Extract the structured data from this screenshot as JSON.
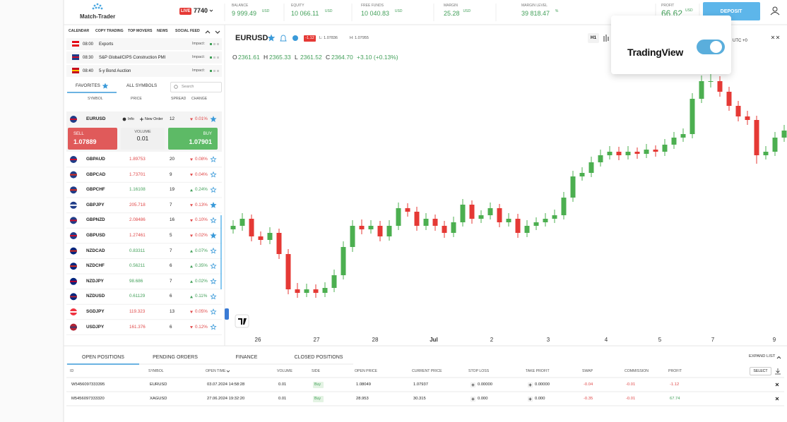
{
  "header": {
    "logo": "Match-Trader",
    "account_badge": "LIVE",
    "account": "7740",
    "stats": [
      {
        "label": "BALANCE",
        "value": "9 999.49",
        "unit": "USD"
      },
      {
        "label": "EQUITY",
        "value": "10 066.11",
        "unit": "USD"
      },
      {
        "label": "FREE FUNDS",
        "value": "10 040.83",
        "unit": "USD"
      },
      {
        "label": "MARGIN",
        "value": "25.28",
        "unit": "USD"
      },
      {
        "label": "MARGIN LEVEL",
        "value": "39 818.47",
        "unit": "%"
      },
      {
        "label": "PROFIT",
        "value": "66.62",
        "unit": "USD"
      }
    ],
    "deposit": "DEPOSIT"
  },
  "panel_tabs": [
    "CALENDAR",
    "COPY TRADING",
    "TOP MOVERS",
    "NEWS",
    "SOCIAL FEED"
  ],
  "calendar": [
    {
      "time": "08:00",
      "event": "Exports",
      "impact": "Impact:"
    },
    {
      "time": "08:30",
      "event": "S&P Global/CIPS Construction PMI",
      "impact": "Impact:"
    },
    {
      "time": "08:40",
      "event": "5-y Bond Auction",
      "impact": "Impact:"
    }
  ],
  "symbol_tabs": {
    "favorites": "FAVORITES",
    "all": "ALL SYMBOLS",
    "search": "Search"
  },
  "symbol_columns": [
    "SYMBOL",
    "PRICE",
    "SPREAD",
    "CHANGE"
  ],
  "selected": {
    "symbol": "EURUSD",
    "info": "Info",
    "new_order": "New Order",
    "spread": "12",
    "change": "0.01%",
    "direction": "down",
    "favorite": true,
    "sell_label": "SELL",
    "sell": "1.07889",
    "volume_label": "VOLUME",
    "volume": "0.01",
    "buy_label": "BUY",
    "buy": "1.07901"
  },
  "symbols": [
    {
      "symbol": "GBPAUD",
      "price": "1.89753",
      "spread": "20",
      "change": "0.08%",
      "direction": "down",
      "favorite": false
    },
    {
      "symbol": "GBPCAD",
      "price": "1.73701",
      "spread": "9",
      "change": "0.04%",
      "direction": "down",
      "favorite": false
    },
    {
      "symbol": "GBPCHF",
      "price": "1.16108",
      "spread": "19",
      "change": "0.24%",
      "direction": "up",
      "favorite": false
    },
    {
      "symbol": "GBPJPY",
      "price": "205.718",
      "spread": "7",
      "change": "0.13%",
      "direction": "down",
      "favorite": true
    },
    {
      "symbol": "GBPNZD",
      "price": "2.08486",
      "spread": "16",
      "change": "0.10%",
      "direction": "down",
      "favorite": false
    },
    {
      "symbol": "GBPUSD",
      "price": "1.27461",
      "spread": "5",
      "change": "0.02%",
      "direction": "down",
      "favorite": true
    },
    {
      "symbol": "NZDCAD",
      "price": "0.83311",
      "spread": "7",
      "change": "0.07%",
      "direction": "up",
      "favorite": false
    },
    {
      "symbol": "NZDCHF",
      "price": "0.56211",
      "spread": "6",
      "change": "0.35%",
      "direction": "up",
      "favorite": false
    },
    {
      "symbol": "NZDJPY",
      "price": "98.686",
      "spread": "7",
      "change": "0.02%",
      "direction": "up",
      "favorite": false
    },
    {
      "symbol": "NZDUSD",
      "price": "0.61129",
      "spread": "6",
      "change": "0.11%",
      "direction": "up",
      "favorite": false
    },
    {
      "symbol": "SGDJPY",
      "price": "119.323",
      "spread": "13",
      "change": "0.05%",
      "direction": "down",
      "favorite": false
    },
    {
      "symbol": "USDJPY",
      "price": "161.376",
      "spread": "6",
      "change": "0.12%",
      "direction": "down",
      "favorite": false
    }
  ],
  "chart_data": {
    "type": "candlestick",
    "symbol": "EURUSD",
    "badge": "-1.12",
    "low": "L: 1.07836",
    "high": "H: 1.07955",
    "readout": [
      {
        "key": "O",
        "value": "2361.61"
      },
      {
        "key": "H",
        "value": "2365.33"
      },
      {
        "key": "L",
        "value": "2361.52"
      },
      {
        "key": "C",
        "value": "2364.70"
      }
    ],
    "change": "+3.10 (+0.13%)",
    "interval": "H1",
    "timezone": "UTC +0",
    "brand": "TradingView",
    "x_labels": [
      "26",
      "27",
      "28",
      "Jul",
      "2",
      "3",
      "4",
      "5",
      "7",
      "9"
    ],
    "up_color": "#4caf50",
    "down_color": "#e53935",
    "ylim": [
      2330,
      2368
    ],
    "ohlc": [
      [
        2344.5,
        2345.8,
        2343.9,
        2345
      ],
      [
        2345,
        2346.8,
        2344.3,
        2346
      ],
      [
        2346,
        2346.6,
        2342.8,
        2343.5
      ],
      [
        2343.5,
        2344.2,
        2342.3,
        2343
      ],
      [
        2343,
        2344.8,
        2342.4,
        2344
      ],
      [
        2344,
        2344.6,
        2340.3,
        2341
      ],
      [
        2341,
        2341.7,
        2335.3,
        2336
      ],
      [
        2336,
        2336.9,
        2334.8,
        2335.5
      ],
      [
        2335.5,
        2336.8,
        2334.9,
        2336
      ],
      [
        2336,
        2336.7,
        2334.8,
        2335.5
      ],
      [
        2335.5,
        2337,
        2334.9,
        2336.2
      ],
      [
        2336.2,
        2338.8,
        2335.6,
        2338
      ],
      [
        2338,
        2342.8,
        2337.4,
        2342
      ],
      [
        2342,
        2345.8,
        2341.3,
        2345
      ],
      [
        2345,
        2345.9,
        2343.8,
        2344.5
      ],
      [
        2344.5,
        2345.8,
        2343.9,
        2345
      ],
      [
        2345,
        2345.7,
        2342.8,
        2343.5
      ],
      [
        2343.5,
        2345.8,
        2342.9,
        2345
      ],
      [
        2345,
        2348.3,
        2344.4,
        2347.5
      ],
      [
        2347.5,
        2348.2,
        2346.3,
        2347
      ],
      [
        2347,
        2347.7,
        2344.3,
        2345
      ],
      [
        2345,
        2346.8,
        2344.4,
        2346
      ],
      [
        2346,
        2346.6,
        2344.3,
        2345
      ],
      [
        2345,
        2345.7,
        2343.3,
        2344
      ],
      [
        2344,
        2346.3,
        2343.4,
        2345.5
      ],
      [
        2345.5,
        2348.8,
        2344.9,
        2348
      ],
      [
        2348,
        2348.6,
        2345.3,
        2346
      ],
      [
        2346,
        2347.2,
        2345.4,
        2346.5
      ],
      [
        2346.5,
        2348.3,
        2345.9,
        2347.5
      ],
      [
        2347.5,
        2348.1,
        2344.8,
        2345.5
      ],
      [
        2345.5,
        2346.8,
        2344.9,
        2346
      ],
      [
        2346,
        2346.7,
        2343.3,
        2344
      ],
      [
        2344,
        2345.8,
        2343.4,
        2345
      ],
      [
        2345,
        2346.2,
        2344.4,
        2345.5
      ],
      [
        2345.5,
        2346.8,
        2344.9,
        2346
      ],
      [
        2346,
        2347.3,
        2345.4,
        2346.5
      ],
      [
        2346.5,
        2349.8,
        2345.9,
        2349
      ],
      [
        2349,
        2352.8,
        2348.4,
        2352
      ],
      [
        2352,
        2353.3,
        2351.4,
        2352.5
      ],
      [
        2352.5,
        2354.8,
        2351.9,
        2354
      ],
      [
        2354,
        2355.8,
        2353.4,
        2355
      ],
      [
        2355,
        2356.3,
        2354.4,
        2355.5
      ],
      [
        2355.5,
        2356.2,
        2354.3,
        2355
      ],
      [
        2355,
        2356.3,
        2354.4,
        2355.5
      ],
      [
        2355.5,
        2356.1,
        2354.5,
        2355.2
      ],
      [
        2355.2,
        2356.6,
        2354.6,
        2355.8
      ],
      [
        2355.8,
        2356.4,
        2354.8,
        2355.5
      ],
      [
        2355.5,
        2357.3,
        2354.9,
        2356.5
      ],
      [
        2356.5,
        2358.3,
        2355.9,
        2357.5
      ],
      [
        2357.5,
        2358.8,
        2356.9,
        2358
      ],
      [
        2358,
        2363.8,
        2357.4,
        2363
      ],
      [
        2363,
        2366.3,
        2362.4,
        2365.5
      ],
      [
        2365.5,
        2366.8,
        2364.6,
        2365.5
      ],
      [
        2365.5,
        2366.2,
        2363.3,
        2364
      ],
      [
        2364,
        2364.7,
        2361.3,
        2362
      ],
      [
        2362,
        2362.7,
        2359.8,
        2360.5
      ],
      [
        2360.5,
        2361.3,
        2359.3,
        2360
      ],
      [
        2360,
        2360.6,
        2353.8,
        2355
      ],
      [
        2355,
        2356.3,
        2354.4,
        2355.5
      ],
      [
        2355.5,
        2358.3,
        2354.9,
        2357.5
      ],
      [
        2357.5,
        2359.3,
        2356.9,
        2358.5
      ]
    ]
  },
  "positions": {
    "tabs": [
      "OPEN POSITIONS",
      "PENDING ORDERS",
      "FINANCE",
      "CLOSED POSITIONS"
    ],
    "expand": "EXPAND LIST",
    "select": "SELECT",
    "columns": [
      "ID",
      "SYMBOL",
      "OPEN TIME",
      "VOLUME",
      "SIDE",
      "OPEN PRICE",
      "CURRENT PRICE",
      "STOP LOSS",
      "TAKE PROFIT",
      "SWAP",
      "COMMISSION",
      "PROFIT"
    ],
    "rows": [
      [
        "W5456097333395",
        "EURUSD",
        "03.07.2024 14:58:28",
        "0.01",
        "Buy",
        "1.08049",
        "1.07937",
        "0.00000",
        "0.00000",
        "-0.04",
        "-0.01",
        "-1.12"
      ],
      [
        "M5456097333320",
        "XAGUSD",
        "27.06.2024 19:32:20",
        "0.01",
        "Buy",
        "28.953",
        "30.315",
        "0.000",
        "0.000",
        "-0.35",
        "-0.01",
        "67.74"
      ]
    ]
  }
}
